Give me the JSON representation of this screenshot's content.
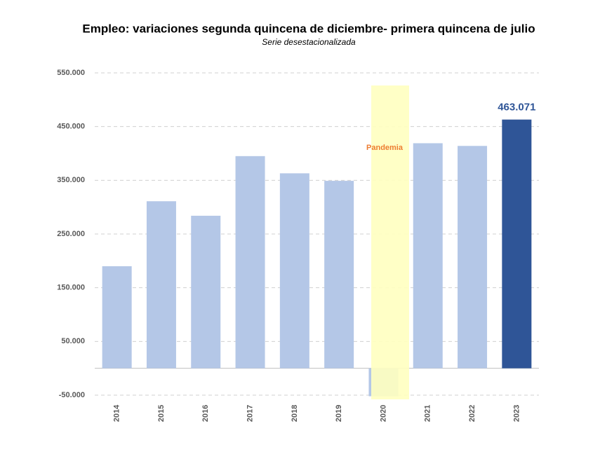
{
  "chart_data": {
    "type": "bar",
    "title": "Empleo: variaciones segunda quincena de diciembre- primera quincena de julio",
    "subtitle": "Serie desestacionalizada",
    "categories": [
      "2014",
      "2015",
      "2016",
      "2017",
      "2018",
      "2019",
      "2020",
      "2021",
      "2022",
      "2023"
    ],
    "values": [
      190000,
      311000,
      284000,
      395000,
      363000,
      349000,
      -52000,
      419000,
      414000,
      463071
    ],
    "value_labels": [
      null,
      null,
      null,
      null,
      null,
      null,
      null,
      null,
      null,
      "463.071"
    ],
    "colors": [
      "#b4c7e7",
      "#b4c7e7",
      "#b4c7e7",
      "#b4c7e7",
      "#b4c7e7",
      "#b4c7e7",
      "#b4c7e7",
      "#b4c7e7",
      "#b4c7e7",
      "#2f5597"
    ],
    "annotation": "Pandemia",
    "ylim": [
      -50000,
      550000
    ],
    "yticks": [
      {
        "value": -50000,
        "label": "-50.000"
      },
      {
        "value": 50000,
        "label": "50.000"
      },
      {
        "value": 150000,
        "label": "150.000"
      },
      {
        "value": 250000,
        "label": "250.000"
      },
      {
        "value": 350000,
        "label": "350.000"
      },
      {
        "value": 450000,
        "label": "450.000"
      },
      {
        "value": 550000,
        "label": "550.000"
      }
    ],
    "grid": true
  }
}
